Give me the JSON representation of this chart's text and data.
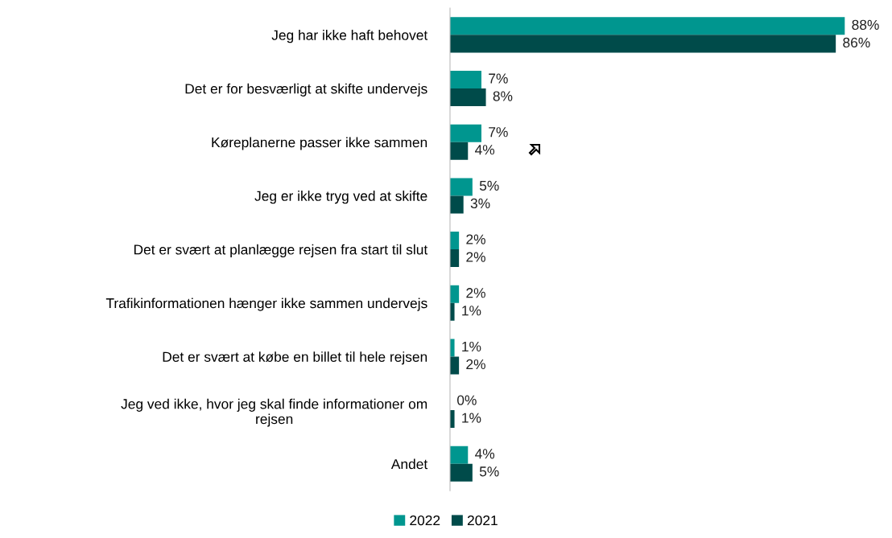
{
  "chart_data": {
    "type": "bar",
    "orientation": "horizontal",
    "legend": "bottom",
    "grid": false,
    "categories": [
      "Jeg har ikke haft behovet",
      "Det er for besværligt at skifte undervejs",
      "Køreplanerne passer ikke sammen",
      "Jeg er ikke tryg ved at skifte",
      "Det er svært at planlægge rejsen fra start til slut",
      "Trafikinformationen hænger ikke sammen undervejs",
      "Det er svært at købe en billet til hele rejsen",
      "Jeg ved ikke, hvor jeg skal finde informationer om\nrejsen",
      "Andet"
    ],
    "series": [
      {
        "name": "2022",
        "color": "#00968f",
        "values": [
          88,
          7,
          7,
          5,
          2,
          2,
          1,
          0,
          4
        ],
        "value_labels": [
          "88%",
          "7%",
          "7%",
          "5%",
          "2%",
          "2%",
          "1%",
          "0%",
          "4%"
        ]
      },
      {
        "name": "2021",
        "color": "#004b4a",
        "values": [
          86,
          8,
          4,
          3,
          2,
          1,
          2,
          1,
          5
        ],
        "value_labels": [
          "86%",
          "8%",
          "4%",
          "3%",
          "2%",
          "1%",
          "2%",
          "1%",
          "5%"
        ]
      }
    ]
  }
}
